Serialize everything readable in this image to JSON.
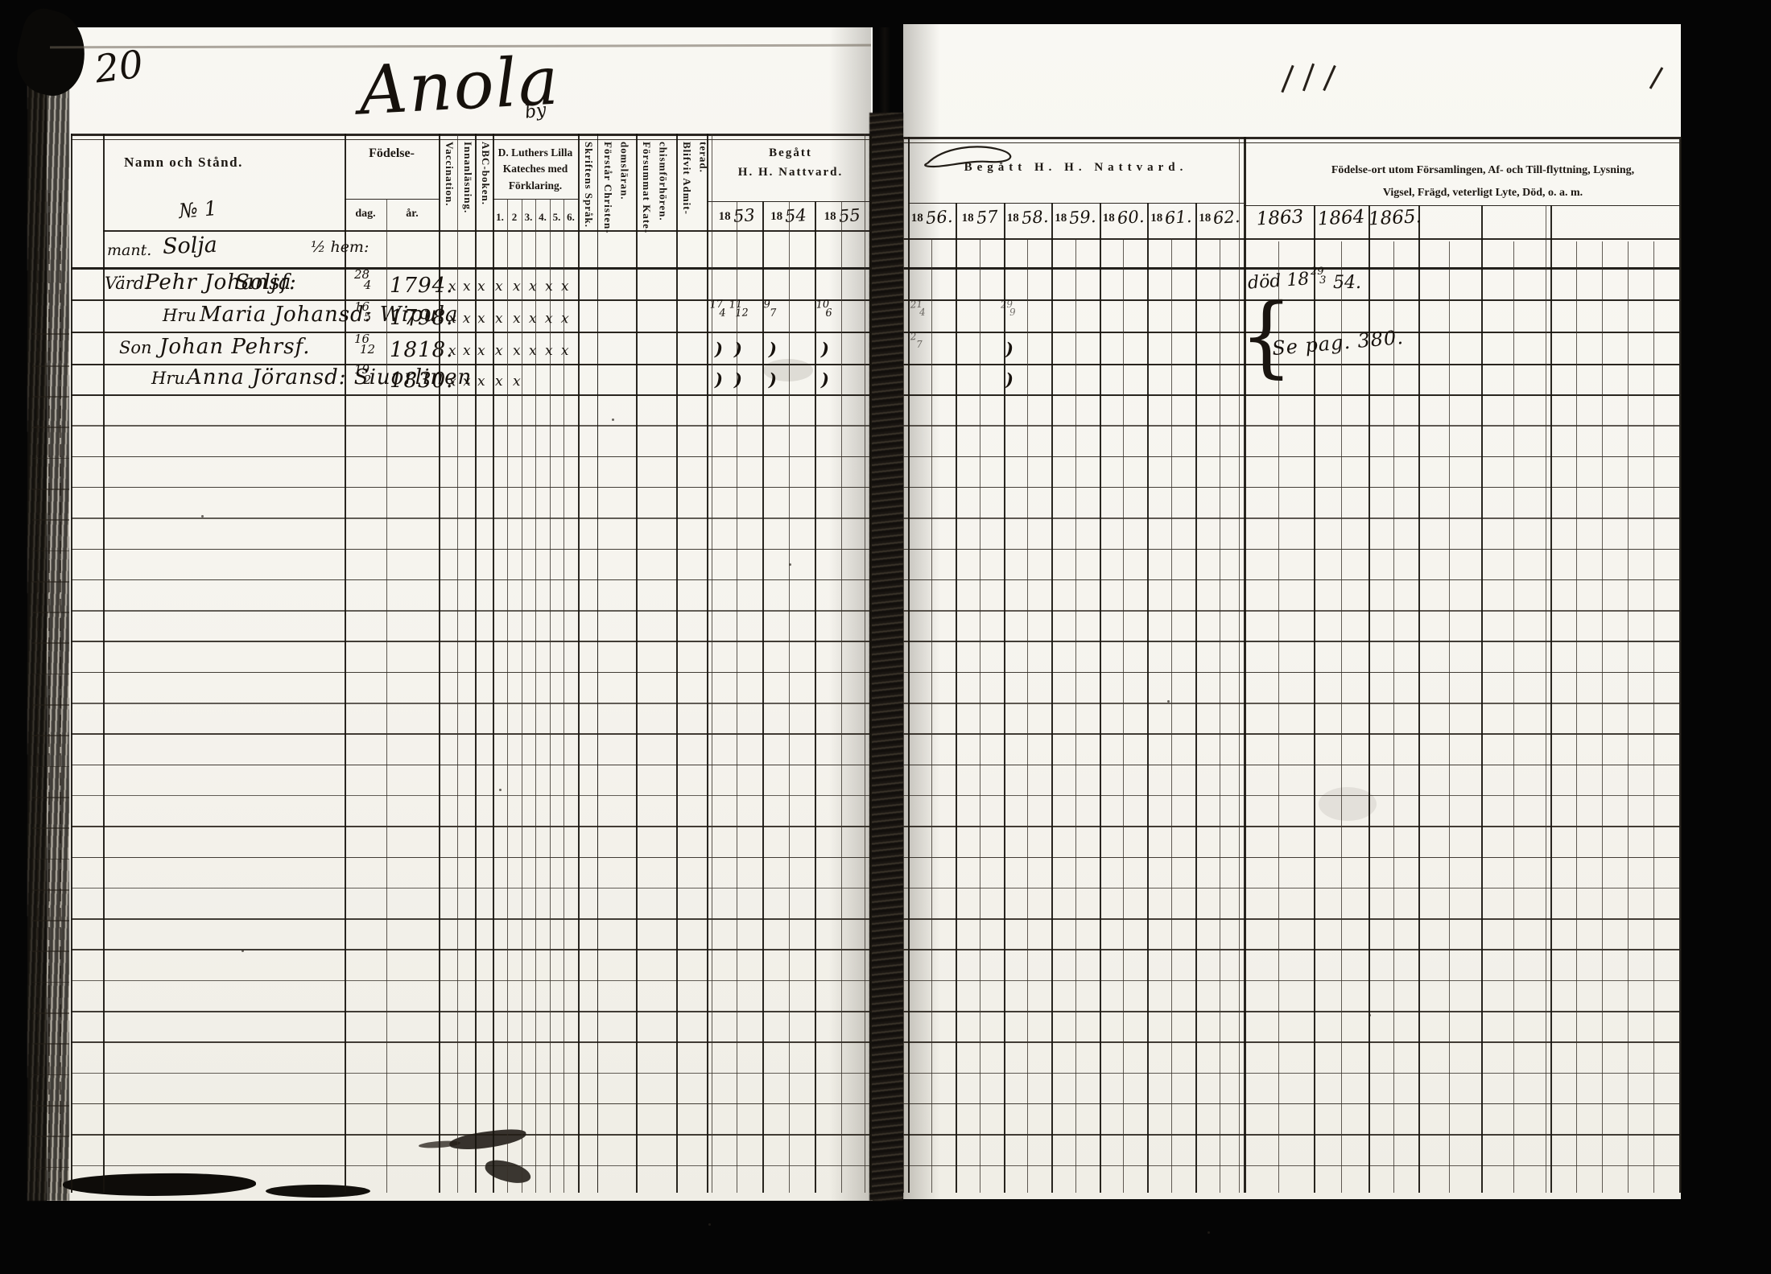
{
  "scan": {
    "folio": "20",
    "title": "Anola",
    "title_suffix": "by"
  },
  "left_page": {
    "columns": {
      "name": "Namn och Stånd.",
      "entry_number": "№ 1",
      "birth_label": "Födelse-",
      "birth_day": "dag.",
      "birth_year": "år.",
      "vaccination": "Vaccination.",
      "reading": "Innanläsning.",
      "abc_book": "ABC-boken.",
      "catechism_label_1": "D. Luthers Lilla",
      "catechism_label_2": "Kateches med",
      "catechism_label_3": "Förklaring.",
      "catechism_numbers": [
        "1.",
        "2",
        "3.",
        "4.",
        "5.",
        "6."
      ],
      "scripture": "Skriftens Språk.",
      "understands_1": "Förstår Christen-",
      "understands_2": "domsläran.",
      "missed_1": "Försummat Kate-",
      "missed_2": "chismförhören.",
      "admitted_1": "Blifvit Admit-",
      "admitted_2": "terad.",
      "communion_label_1": "Begått",
      "communion_label_2": "H. H. Nattvard.",
      "communion_years": [
        {
          "printed": "18",
          "written": "53"
        },
        {
          "printed": "18",
          "written": "54"
        },
        {
          "printed": "18",
          "written": "55"
        }
      ]
    }
  },
  "right_page": {
    "communion_label": "Begått H. H. Nattvard.",
    "communion_years": [
      {
        "printed": "18",
        "written": "56."
      },
      {
        "printed": "18",
        "written": "57"
      },
      {
        "printed": "18",
        "written": "58."
      },
      {
        "printed": "18",
        "written": "59."
      },
      {
        "printed": "18",
        "written": "60."
      },
      {
        "printed": "18",
        "written": "61."
      },
      {
        "printed": "18",
        "written": "62."
      }
    ],
    "extra_years": [
      "1863",
      "1864",
      "1865."
    ],
    "notes_header_1": "Födelse-ort utom Församlingen, Af- och Till-flyttning, Lysning,",
    "notes_header_2": "Vigsel, Frägd, veterligt Lyte, Död, o. a. m."
  },
  "entries": {
    "household": {
      "prefix": "mant.",
      "name": "Solja",
      "share": "½ hem:"
    },
    "rows": [
      {
        "title": "Värd.",
        "name": "Pehr Johansf:",
        "name2": "Solja",
        "birth_day": "28/4",
        "birth_year": "1794.",
        "marks": [
          "x",
          "x",
          "x",
          "x",
          "x",
          "x",
          "x",
          "x"
        ],
        "communion_left": [],
        "communion_right": [],
        "note_prefix": "död 18",
        "note_frac": "29/3",
        "note_suffix": "54."
      },
      {
        "title": "Hru",
        "name": "Maria Johansd: Wipula",
        "birth_day": "16/5",
        "birth_year": "1798.",
        "marks": [
          "x",
          "x",
          "x",
          "x",
          "x",
          "x",
          "x",
          "x"
        ],
        "communion_left": [
          "17/4",
          "11/12",
          "9/7",
          "10/6"
        ],
        "communion_right": [
          "21/4",
          "29/9"
        ]
      },
      {
        "title": "Son",
        "name": "Johan Pehrsf.",
        "birth_day": "16/12",
        "birth_year": "1818.",
        "marks": [
          "x",
          "x",
          "x",
          "x",
          "x",
          "x",
          "x",
          "x"
        ],
        "communion_left": [
          ")",
          ")",
          ")",
          ")"
        ],
        "communion_right": [
          "2/7",
          ")"
        ]
      },
      {
        "title": "Hru",
        "name": "Anna Jöransd: Siuorlinen",
        "birth_day": "19/2",
        "birth_year": "1830.",
        "marks": [
          "x",
          "x",
          "x",
          "x",
          "x"
        ],
        "communion_left": [
          ")",
          ")",
          ")",
          ")"
        ],
        "communion_right": [
          "",
          ")"
        ]
      }
    ],
    "group_note": "Se pag. 380.",
    "brace": "{"
  }
}
